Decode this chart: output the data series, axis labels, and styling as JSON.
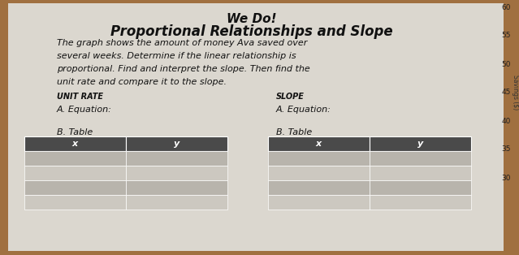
{
  "title_line1": "We Do!",
  "title_line2": "Proportional Relationships and Slope",
  "body_line1": "The graph shows the amount of money Ava saved over",
  "body_line2": "several weeks. Determine if the linear relationship is",
  "body_line3": "proportional. Find and interpret the slope. Then find the",
  "body_line4": "unit rate and compare it to the slope.",
  "label_unit_rate": "UNIT RATE",
  "label_slope": "SLOPE",
  "label_equation_left": "A. Equation:",
  "label_equation_right": "A. Equation:",
  "label_table_left": "B. Table",
  "label_table_right": "B. Table",
  "table_header_x": "x",
  "table_header_y": "y",
  "paper_color": "#dbd7cf",
  "wood_color": "#a07040",
  "table_header_color": "#4a4a4a",
  "table_row_color_dark": "#b8b4ac",
  "table_row_color_light": "#ccc8c0",
  "num_data_rows": 4,
  "right_numbers": [
    "60",
    "55",
    "50",
    "45",
    "40",
    "35",
    "30"
  ],
  "right_label": "Savings ($)"
}
